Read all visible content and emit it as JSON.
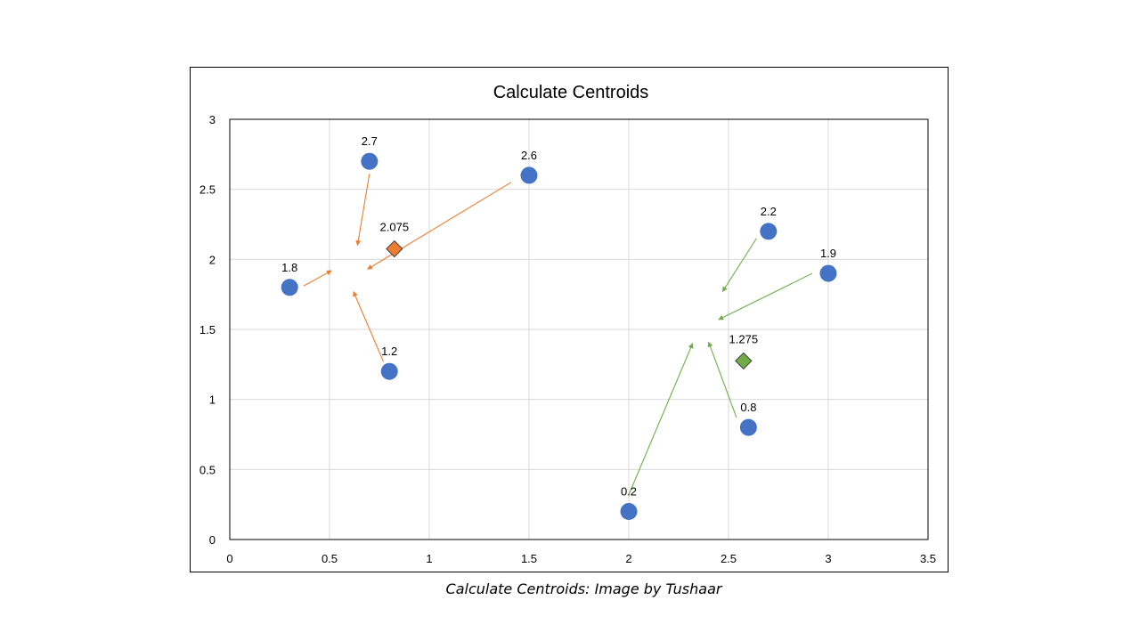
{
  "caption": "Calculate Centroids: Image by Tushaar",
  "colors": {
    "points": "#4472C4",
    "cluster_1": "#ED7D31",
    "cluster_2": "#70AD47",
    "grid": "#D9D9D9",
    "axis": "#000000"
  },
  "chart_data": {
    "type": "scatter",
    "title": "Calculate Centroids",
    "xlabel": "",
    "ylabel": "",
    "xlim": [
      0,
      3.5
    ],
    "ylim": [
      0,
      3
    ],
    "x_ticks": [
      0,
      0.5,
      1,
      1.5,
      2,
      2.5,
      3,
      3.5
    ],
    "x_tick_labels": [
      "0",
      "0.5",
      "1",
      "1.5",
      "2",
      "2.5",
      "3",
      "3.5"
    ],
    "y_ticks": [
      0,
      0.5,
      1,
      1.5,
      2,
      2.5,
      3
    ],
    "y_tick_labels": [
      "0",
      "0.5",
      "1",
      "1.5",
      "2",
      "2.5",
      "3"
    ],
    "grid": true,
    "legend": "none",
    "points": [
      {
        "x": 0.3,
        "y": 1.8,
        "label": "1.8"
      },
      {
        "x": 0.7,
        "y": 2.7,
        "label": "2.7"
      },
      {
        "x": 0.8,
        "y": 1.2,
        "label": "1.2"
      },
      {
        "x": 1.5,
        "y": 2.6,
        "label": "2.6"
      },
      {
        "x": 2.0,
        "y": 0.2,
        "label": "0.2"
      },
      {
        "x": 2.6,
        "y": 0.8,
        "label": "0.8"
      },
      {
        "x": 2.7,
        "y": 2.2,
        "label": "2.2"
      },
      {
        "x": 3.0,
        "y": 1.9,
        "label": "1.9"
      }
    ],
    "centroids": [
      {
        "x": 0.825,
        "y": 2.075,
        "label": "2.075",
        "color": "#ED7D31"
      },
      {
        "x": 2.575,
        "y": 1.275,
        "label": "1.275",
        "color": "#70AD47"
      }
    ],
    "arrows": [
      {
        "from": [
          0.7,
          2.61
        ],
        "to": [
          0.64,
          2.1
        ],
        "color": "#ED7D31"
      },
      {
        "from": [
          1.41,
          2.55
        ],
        "to": [
          0.69,
          1.93
        ],
        "color": "#ED7D31"
      },
      {
        "from": [
          0.37,
          1.81
        ],
        "to": [
          0.51,
          1.92
        ],
        "color": "#ED7D31"
      },
      {
        "from": [
          0.77,
          1.27
        ],
        "to": [
          0.62,
          1.77
        ],
        "color": "#ED7D31"
      },
      {
        "from": [
          2.64,
          2.15
        ],
        "to": [
          2.47,
          1.77
        ],
        "color": "#70AD47"
      },
      {
        "from": [
          2.92,
          1.9
        ],
        "to": [
          2.45,
          1.57
        ],
        "color": "#70AD47"
      },
      {
        "from": [
          2.0,
          0.32
        ],
        "to": [
          2.32,
          1.4
        ],
        "color": "#70AD47"
      },
      {
        "from": [
          2.54,
          0.87
        ],
        "to": [
          2.4,
          1.41
        ],
        "color": "#70AD47"
      }
    ]
  }
}
